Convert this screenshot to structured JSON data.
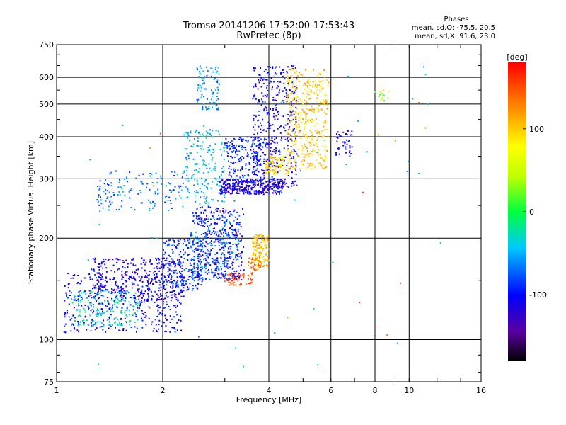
{
  "chart_data": {
    "type": "scatter",
    "title": "Tromsø 20141206 17:52:00-17:53:43",
    "subtitle": "RwPretec (8p)",
    "xlabel": "Frequency [MHz]",
    "ylabel": "Stationary phase Virtual Height [km]",
    "x_scale": "log",
    "y_scale": "log",
    "xlim": [
      1,
      16
    ],
    "ylim": [
      75,
      750
    ],
    "x_ticks": [
      1,
      2,
      4,
      6,
      8,
      10,
      16
    ],
    "y_ticks": [
      75,
      100,
      200,
      300,
      400,
      500,
      600,
      750
    ],
    "grid": true,
    "colorbar": {
      "label": "[deg]",
      "range": [
        -180,
        180
      ],
      "ticks": [
        100,
        0,
        -100
      ]
    },
    "stats": {
      "header": "Phases",
      "line1": "mean, sd,O: -75.5, 20.5",
      "line2": "mean, sd,X:  91.6, 23.0"
    },
    "point_clusters": [
      {
        "f": [
          1.05,
          2.3
        ],
        "h": [
          105,
          160
        ],
        "phase": -100,
        "n": 420
      },
      {
        "f": [
          1.1,
          1.7
        ],
        "h": [
          110,
          140
        ],
        "phase": -25,
        "n": 160
      },
      {
        "f": [
          1.25,
          2.3
        ],
        "h": [
          130,
          175
        ],
        "phase": -120,
        "n": 320
      },
      {
        "f": [
          2.0,
          2.6
        ],
        "h": [
          140,
          200
        ],
        "phase": -90,
        "n": 180
      },
      {
        "f": [
          2.4,
          3.3
        ],
        "h": [
          150,
          240
        ],
        "phase": -75,
        "n": 360
      },
      {
        "f": [
          2.5,
          3.4
        ],
        "h": [
          150,
          250
        ],
        "phase": -120,
        "n": 200
      },
      {
        "f": [
          1.3,
          2.3
        ],
        "h": [
          240,
          320
        ],
        "phase": -70,
        "n": 140
      },
      {
        "f": [
          2.3,
          3.0
        ],
        "h": [
          250,
          420
        ],
        "phase": -45,
        "n": 190
      },
      {
        "f": [
          2.5,
          2.9
        ],
        "h": [
          480,
          650
        ],
        "phase": -55,
        "n": 90
      },
      {
        "f": [
          2.9,
          4.4
        ],
        "h": [
          270,
          300
        ],
        "phase": -115,
        "n": 320
      },
      {
        "f": [
          3.0,
          3.9
        ],
        "h": [
          290,
          400
        ],
        "phase": -95,
        "n": 200
      },
      {
        "f": [
          3.6,
          4.8
        ],
        "h": [
          280,
          650
        ],
        "phase": -110,
        "n": 420
      },
      {
        "f": [
          4.5,
          5.9
        ],
        "h": [
          320,
          640
        ],
        "phase": 100,
        "n": 360
      },
      {
        "f": [
          3.9,
          4.6
        ],
        "h": [
          310,
          350
        ],
        "phase": 90,
        "n": 80
      },
      {
        "f": [
          3.6,
          4.0
        ],
        "h": [
          165,
          205
        ],
        "phase": 105,
        "n": 120
      },
      {
        "f": [
          3.0,
          3.6
        ],
        "h": [
          145,
          158
        ],
        "phase": 150,
        "n": 60
      },
      {
        "f": [
          3.5,
          3.8
        ],
        "h": [
          160,
          175
        ],
        "phase": 130,
        "n": 30
      },
      {
        "f": [
          6.2,
          6.9
        ],
        "h": [
          350,
          420
        ],
        "phase": -110,
        "n": 40
      },
      {
        "f": [
          7.9,
          8.8
        ],
        "h": [
          510,
          560
        ],
        "phase": 30,
        "n": 14
      },
      {
        "f": [
          1.1,
          14.0
        ],
        "h": [
          80,
          700
        ],
        "phase": -40,
        "n": 45
      },
      {
        "f": [
          1.8,
          12.0
        ],
        "h": [
          80,
          650
        ],
        "phase": 140,
        "n": 18
      }
    ]
  }
}
